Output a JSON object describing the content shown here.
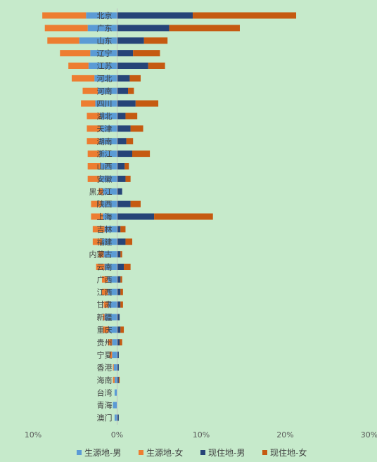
{
  "chart_data": {
    "type": "bar",
    "orientation": "horizontal",
    "stacking": "diverging",
    "categories": [
      "北京",
      "广东",
      "山东",
      "辽宁",
      "江苏",
      "河北",
      "河南",
      "四川",
      "湖北",
      "天津",
      "湖南",
      "浙江",
      "山西",
      "安徽",
      "黑龙江",
      "陕西",
      "上海",
      "吉林",
      "福建",
      "内蒙古",
      "云南",
      "广西",
      "江西",
      "甘肃",
      "新疆",
      "重庆",
      "贵州",
      "宁夏",
      "香港",
      "海南",
      "台湾",
      "青海",
      "澳门"
    ],
    "series": [
      {
        "name": "生源地-男",
        "color": "#5b9bd5",
        "side": "left",
        "values": [
          3.7,
          3.5,
          4.5,
          3.2,
          3.4,
          2.7,
          2.3,
          2.6,
          2.0,
          2.0,
          2.1,
          2.1,
          2.0,
          2.1,
          1.7,
          1.9,
          1.7,
          1.5,
          1.8,
          1.6,
          1.5,
          1.1,
          1.1,
          1.0,
          1.5,
          1.0,
          0.6,
          0.6,
          0.4,
          0.3,
          0.3,
          0.5,
          0.3
        ]
      },
      {
        "name": "生源地-女",
        "color": "#ed7d31",
        "side": "left",
        "values": [
          5.2,
          5.1,
          3.8,
          3.6,
          2.4,
          2.7,
          1.8,
          1.7,
          1.6,
          1.6,
          1.5,
          1.4,
          1.5,
          1.4,
          0.5,
          1.2,
          1.4,
          1.4,
          1.1,
          0.6,
          1.0,
          0.7,
          0.7,
          0.6,
          0.2,
          0.7,
          0.5,
          0.3,
          0.1,
          0.2,
          0.0,
          0.0,
          0.0
        ]
      },
      {
        "name": "现住地-男",
        "color": "#264478",
        "side": "right",
        "values": [
          9.0,
          6.2,
          3.2,
          1.9,
          3.7,
          1.5,
          1.3,
          2.2,
          1.0,
          1.6,
          1.1,
          1.8,
          0.9,
          1.0,
          0.6,
          1.6,
          4.4,
          0.4,
          1.0,
          0.4,
          0.8,
          0.4,
          0.4,
          0.4,
          0.3,
          0.4,
          0.3,
          0.2,
          0.2,
          0.2,
          0.0,
          0.0,
          0.2
        ]
      },
      {
        "name": "现住地-女",
        "color": "#c55a11",
        "side": "right",
        "values": [
          12.3,
          8.4,
          2.8,
          3.2,
          2.0,
          1.3,
          0.7,
          2.7,
          1.4,
          1.5,
          0.8,
          2.1,
          0.5,
          0.6,
          0.0,
          1.2,
          7.0,
          0.6,
          0.8,
          0.2,
          0.8,
          0.2,
          0.3,
          0.3,
          0.0,
          0.4,
          0.3,
          0.0,
          0.0,
          0.1,
          0.0,
          0.0,
          0.0
        ]
      }
    ],
    "xlim": [
      -10,
      30
    ],
    "xticks": [
      -10,
      0,
      10,
      20,
      30
    ],
    "xtick_labels": [
      "10%",
      "0%",
      "10%",
      "20%",
      "30%"
    ],
    "grid": false,
    "legend_position": "bottom"
  }
}
